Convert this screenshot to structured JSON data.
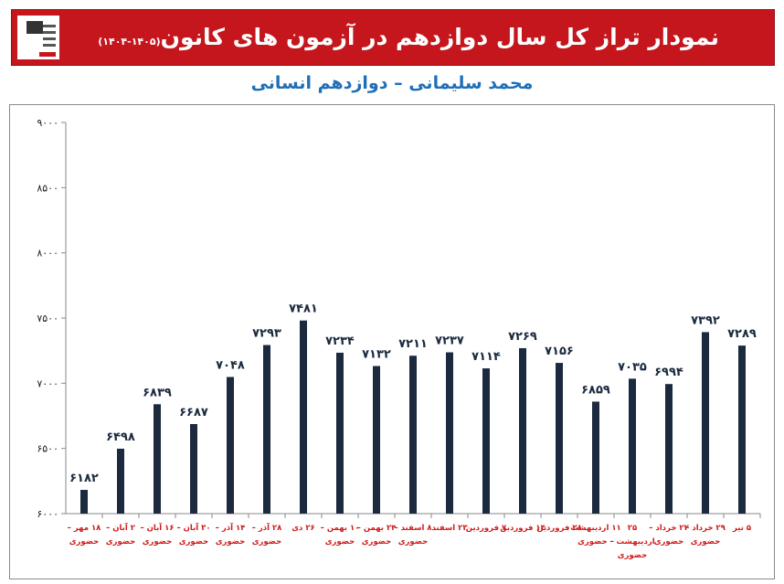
{
  "header": {
    "title": "نمودار تراز کل سال دوازدهم در آزمون های کانون",
    "title_range": "(۱۴۰۵-۱۴۰۴)",
    "subtitle": "محمد سلیمانی – دوازدهم انسانی",
    "logo_icon": "kanoon-logo-icon"
  },
  "colors": {
    "banner": "#c4161c",
    "bar": "#1b2a3f",
    "category_label": "#d01a1a",
    "subtitle": "#1f6fb8"
  },
  "chart_data": {
    "type": "bar",
    "categories": [
      {
        "line1": "۱۸ مهر –",
        "line2": "حضوری"
      },
      {
        "line1": "۲ آبان –",
        "line2": "حضوری"
      },
      {
        "line1": "۱۶ آبان –",
        "line2": "حضوری"
      },
      {
        "line1": "۳۰ آبان –",
        "line2": "حضوری"
      },
      {
        "line1": "۱۴ آذر –",
        "line2": "حضوری"
      },
      {
        "line1": "۲۸ آذر –",
        "line2": "حضوری"
      },
      {
        "line1": "۲۶ دی",
        "line2": ""
      },
      {
        "line1": "۱۰ بهمن –",
        "line2": "حضوری"
      },
      {
        "line1": "۲۴ بهمن –",
        "line2": "حضوری"
      },
      {
        "line1": "۸ اسفند –",
        "line2": "حضوری"
      },
      {
        "line1": "۲۳ اسفند",
        "line2": ""
      },
      {
        "line1": "۷ فروردین",
        "line2": ""
      },
      {
        "line1": "۱۴ فروردین",
        "line2": ""
      },
      {
        "line1": "۲۸ فروردین",
        "line2": ""
      },
      {
        "line1": "۱۱ اردیبهشت",
        "line2": "– حضوری"
      },
      {
        "line1": "۲۵",
        "line2": "اردیبهشت –",
        "line3": "حضوری"
      },
      {
        "line1": "۲۲ خرداد –",
        "line2": "حضوری"
      },
      {
        "line1": "۲۹ خرداد –",
        "line2": "حضوری"
      },
      {
        "line1": "۵ تیر",
        "line2": ""
      }
    ],
    "values": [
      6182,
      6498,
      6839,
      6687,
      7048,
      7293,
      7481,
      7234,
      7132,
      7211,
      7237,
      7114,
      7269,
      7156,
      6859,
      7035,
      6994,
      7392,
      7289
    ],
    "value_labels": [
      "۶۱۸۲",
      "۶۴۹۸",
      "۶۸۳۹",
      "۶۶۸۷",
      "۷۰۴۸",
      "۷۲۹۳",
      "۷۴۸۱",
      "۷۲۳۴",
      "۷۱۳۲",
      "۷۲۱۱",
      "۷۲۳۷",
      "۷۱۱۴",
      "۷۲۶۹",
      "۷۱۵۶",
      "۶۸۵۹",
      "۷۰۳۵",
      "۶۹۹۴",
      "۷۳۹۲",
      "۷۲۸۹"
    ],
    "ylim": [
      6000,
      9000
    ],
    "yticks": [
      6000,
      6500,
      7000,
      7500,
      8000,
      8500,
      9000
    ],
    "ytick_labels": [
      "۶۰۰۰",
      "۶۵۰۰",
      "۷۰۰۰",
      "۷۵۰۰",
      "۸۰۰۰",
      "۸۵۰۰",
      "۹۰۰۰"
    ],
    "grid": false,
    "legend": "none"
  }
}
